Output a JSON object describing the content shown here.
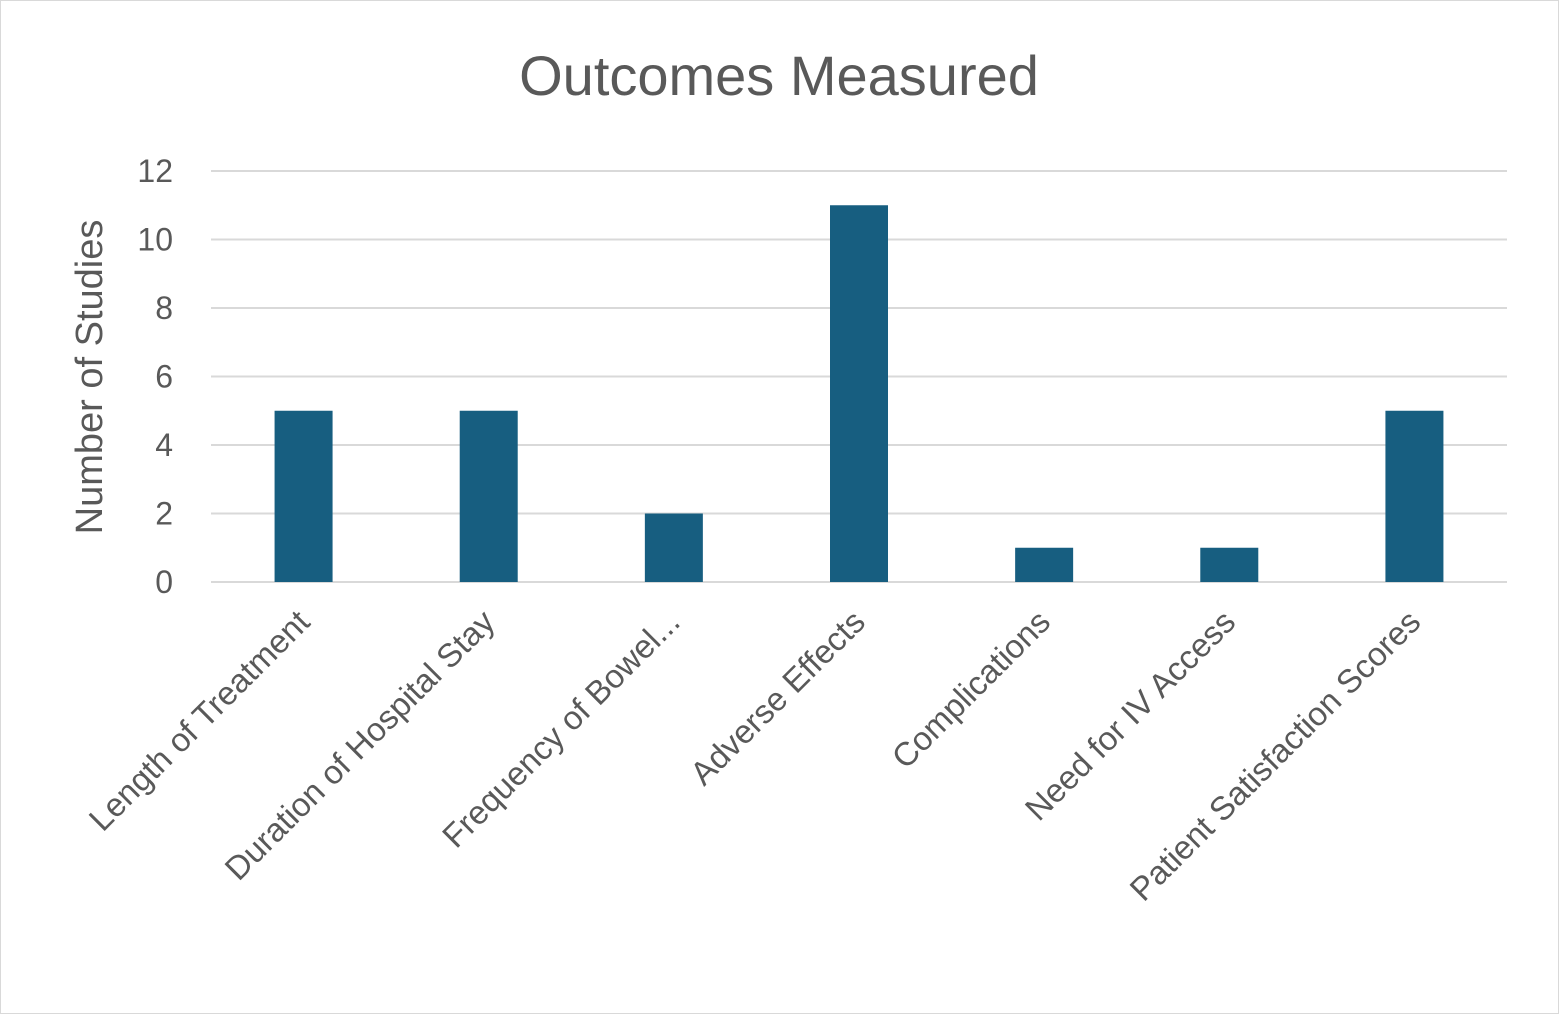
{
  "chart_data": {
    "type": "bar",
    "title": "Outcomes Measured",
    "xlabel": "",
    "ylabel": "Number of Studies",
    "ylim": [
      0,
      12
    ],
    "yticks": [
      0,
      2,
      4,
      6,
      8,
      10,
      12
    ],
    "grid": true,
    "legend": "none",
    "categories": [
      "Length of Treatment",
      "Duration of Hospital Stay",
      "Frequency of Bowel...",
      "Adverse Effects",
      "Complications",
      "Need for IV Access",
      "Patient Satisfaction Scores"
    ],
    "values": [
      5,
      5,
      2,
      11,
      1,
      1,
      5
    ],
    "bar_color": "#175e80"
  }
}
